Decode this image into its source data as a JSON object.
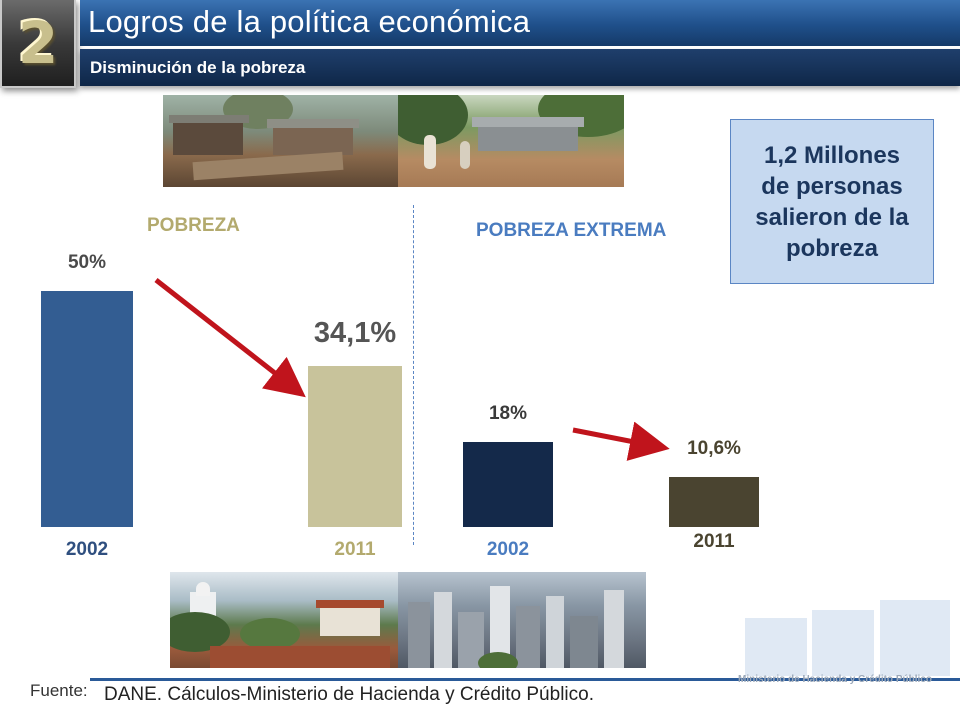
{
  "header": {
    "section_number": "2",
    "title": "Logros de la política económica",
    "subtitle": "Disminución de la pobreza"
  },
  "sections": {
    "poverty_label": "POBREZA",
    "extreme_poverty_label": "POBREZA EXTREMA"
  },
  "chart_data": {
    "type": "bar",
    "groups": [
      {
        "name": "POBREZA",
        "categories": [
          "2002",
          "2011"
        ],
        "values": [
          50,
          34.1
        ],
        "value_labels": [
          "50%",
          "34,1%"
        ],
        "colors": [
          "#335d92",
          "#c8c39b"
        ]
      },
      {
        "name": "POBREZA EXTREMA",
        "categories": [
          "2002",
          "2011"
        ],
        "values": [
          18,
          10.6
        ],
        "value_labels": [
          "18%",
          "10,6%"
        ],
        "colors": [
          "#14294a",
          "#4a4430"
        ]
      }
    ],
    "ylim": [
      0,
      50
    ],
    "grid": false
  },
  "callout": {
    "text": "1,2 Millones\nde personas\nsalieron de la\npobreza"
  },
  "footer": {
    "source_label": "Fuente:",
    "source_text": "DANE. Cálculos-Ministerio de Hacienda y Crédito Público.",
    "ministry": "Ministerio de Hacienda y Crédito Público"
  },
  "colors": {
    "title_bar": "#1f4f8a",
    "subtitle_bar": "#0f2748",
    "arrow": "#c0141c",
    "callout_bg": "#c6d9f0",
    "poverty_label": "#b3aa6e",
    "extreme_label": "#4a7cc0"
  }
}
